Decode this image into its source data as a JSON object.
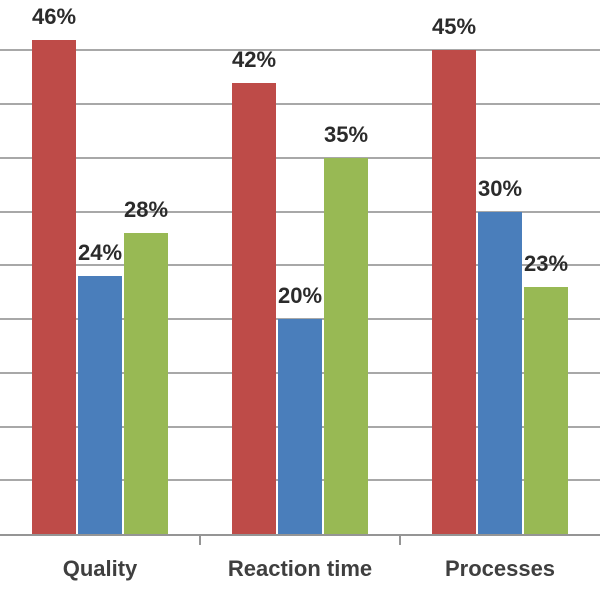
{
  "chart_data": {
    "type": "bar",
    "title": "",
    "categories": [
      "Quality",
      "Reaction time",
      "Processes"
    ],
    "series": [
      {
        "name": "red-series",
        "color": "#be4b48",
        "values": [
          46,
          42,
          45
        ],
        "labels": [
          "46%",
          "42%",
          "45%"
        ]
      },
      {
        "name": "blue-series",
        "color": "#4a7ebb",
        "values": [
          24,
          20,
          30
        ],
        "labels": [
          "24%",
          "20%",
          "30%"
        ]
      },
      {
        "name": "green-series",
        "color": "#98b954",
        "values": [
          28,
          35,
          23
        ],
        "labels": [
          "28%",
          "35%",
          "23%"
        ]
      }
    ],
    "value_suffix": "%",
    "xlabel": "",
    "ylabel": "",
    "ylim": [
      0,
      45
    ],
    "gridline_step": 5,
    "grid": true,
    "legend": "none",
    "axis_tick_count": 2
  },
  "colors": {
    "background": "#ffffff",
    "gridline": "#a8a8a8",
    "axis": "#959595",
    "value_label_text": "#2b2b2b",
    "category_label_text": "#3f3f3f"
  }
}
